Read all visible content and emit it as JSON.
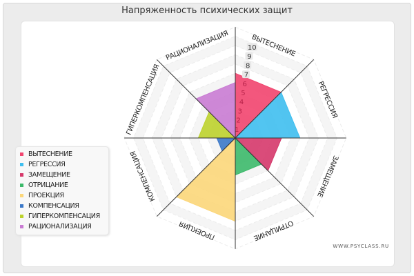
{
  "title": "Напряженность психических защит",
  "watermark": "WWW.PSYCLASS.RU",
  "chart_data": {
    "type": "polar-area",
    "title": "Напряженность психических защит",
    "categories": [
      "ВЫТЕСНЕНИЕ",
      "РЕГРЕССИЯ",
      "ЗАМЕЩЕНИЕ",
      "ОТРИЦАНИЕ",
      "ПРОЕКЦИЯ",
      "КОМПЕНСАЦИЯ",
      "ГИПЕРКОМПЕНСАЦИЯ",
      "РАЦИОНАЛИЗАЦИЯ"
    ],
    "values": [
      7,
      7,
      5,
      4,
      9,
      2,
      4,
      6
    ],
    "colors": [
      "#f2456f",
      "#3fbff0",
      "#d6396b",
      "#3cb96a",
      "#fcd77a",
      "#3b78c8",
      "#bcd22c",
      "#c97bd3"
    ],
    "radial_ticks": [
      "1",
      "2",
      "3",
      "4",
      "5",
      "6",
      "7",
      "8",
      "9",
      "10"
    ],
    "rmax": 10,
    "legend_position": "left"
  }
}
